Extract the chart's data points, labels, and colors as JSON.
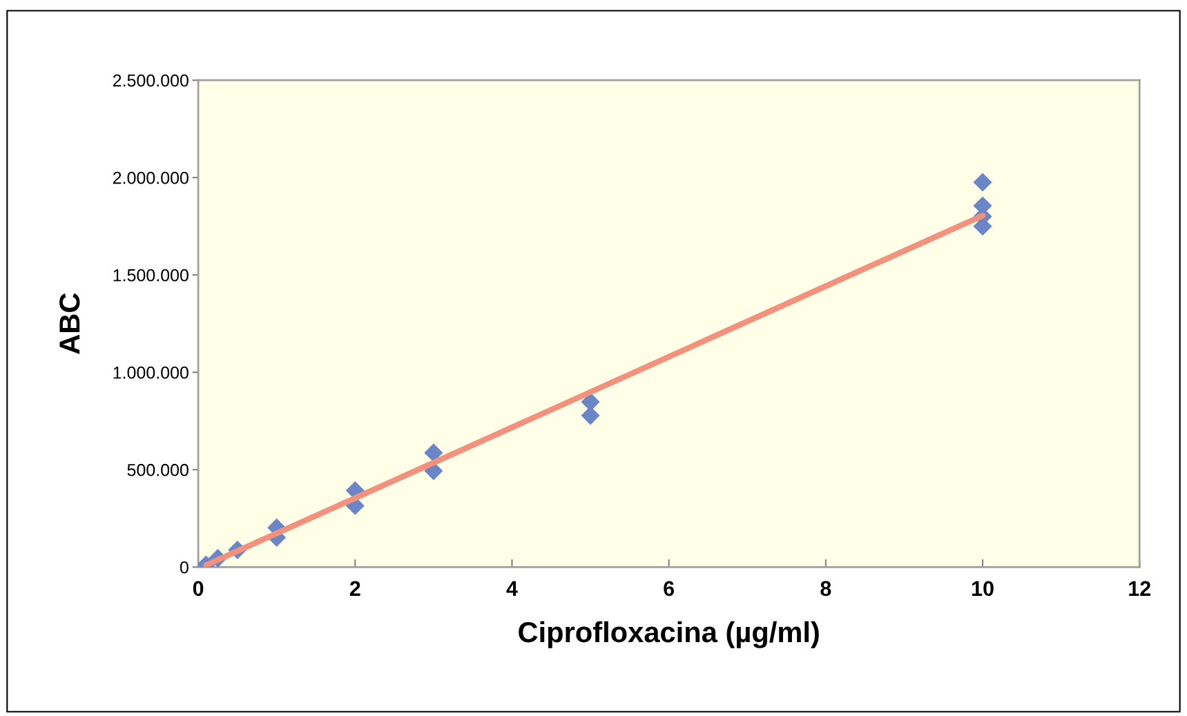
{
  "chart_data": {
    "type": "scatter",
    "xlabel": "Ciprofloxacina (µg/ml)",
    "ylabel": "ABC",
    "xlim": [
      0,
      12
    ],
    "xticks": [
      0,
      2,
      4,
      6,
      8,
      10,
      12
    ],
    "ylim": [
      0,
      2500000
    ],
    "yticks": [
      {
        "value": 0,
        "label": "0"
      },
      {
        "value": 500000,
        "label": "500.000"
      },
      {
        "value": 1000000,
        "label": "1.000.000"
      },
      {
        "value": 1500000,
        "label": "1.500.000"
      },
      {
        "value": 2000000,
        "label": "2.000.000"
      },
      {
        "value": 2500000,
        "label": "2.500.000"
      }
    ],
    "grid": false,
    "legend": false,
    "marker": "diamond",
    "series": [
      {
        "color": "#6b86c8",
        "x": [
          0.1,
          0.25,
          0.5,
          1,
          1,
          2,
          2,
          3,
          3,
          5,
          5,
          10,
          10,
          10,
          10
        ],
        "values": [
          12000,
          45000,
          88000,
          152000,
          202000,
          315000,
          393000,
          494000,
          587000,
          778000,
          848000,
          1750000,
          1800000,
          1855000,
          1976000
        ]
      },
      {
        "type": "line",
        "color": "#f4917c",
        "marker": "none",
        "line_style": "solid",
        "x": [
          0.1,
          10
        ],
        "values": [
          10000,
          1805000
        ]
      }
    ]
  }
}
